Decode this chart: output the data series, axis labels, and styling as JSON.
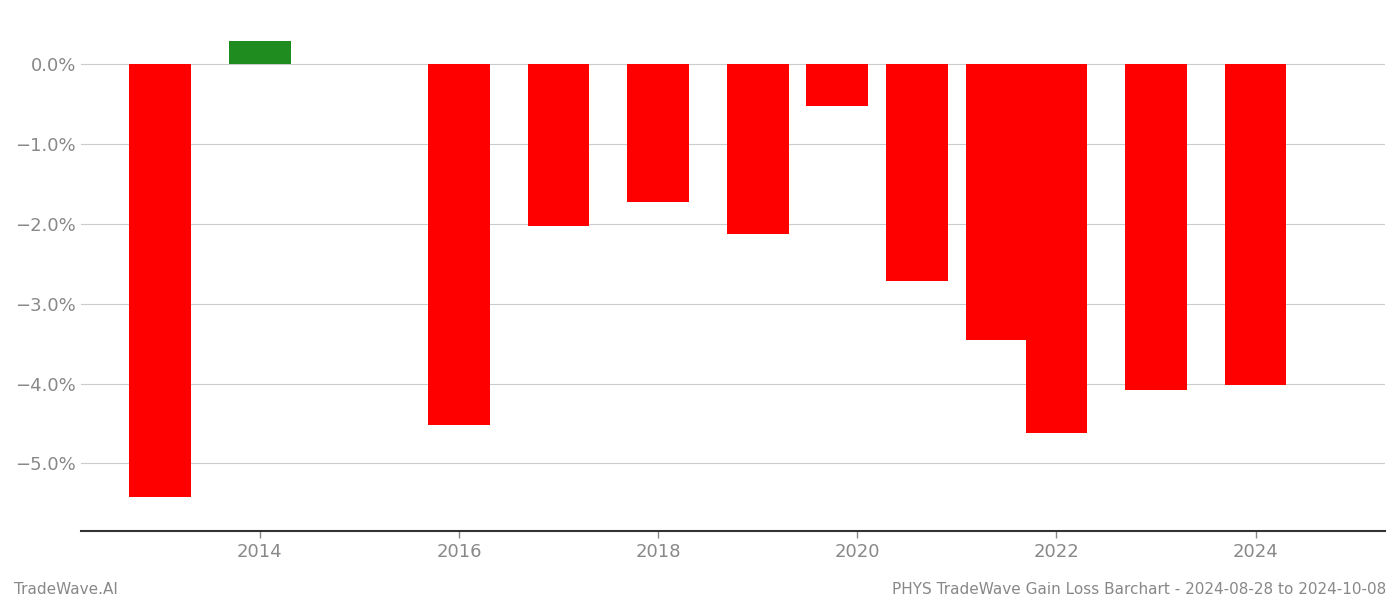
{
  "years": [
    2013,
    2014,
    2016,
    2017,
    2018,
    2019,
    2019.8,
    2020.6,
    2021.4,
    2022,
    2023,
    2024
  ],
  "values": [
    -5.42,
    0.3,
    -4.52,
    -2.02,
    -1.72,
    -2.12,
    -0.52,
    -2.72,
    -3.45,
    -4.62,
    -4.08,
    -4.02
  ],
  "colors": [
    "#ff0000",
    "#1e8c1e",
    "#ff0000",
    "#ff0000",
    "#ff0000",
    "#ff0000",
    "#ff0000",
    "#ff0000",
    "#ff0000",
    "#ff0000",
    "#ff0000",
    "#ff0000"
  ],
  "bar_width": 0.62,
  "ylim": [
    -5.85,
    0.62
  ],
  "yticks": [
    0.0,
    -1.0,
    -2.0,
    -3.0,
    -4.0,
    -5.0
  ],
  "xticks": [
    2014,
    2016,
    2018,
    2020,
    2022,
    2024
  ],
  "xlim": [
    2012.2,
    2025.3
  ],
  "title": "PHYS TradeWave Gain Loss Barchart - 2024-08-28 to 2024-10-08",
  "footer_left": "TradeWave.AI",
  "bg_color": "#ffffff",
  "grid_color": "#cccccc",
  "tick_color": "#888888",
  "spine_color": "#333333"
}
